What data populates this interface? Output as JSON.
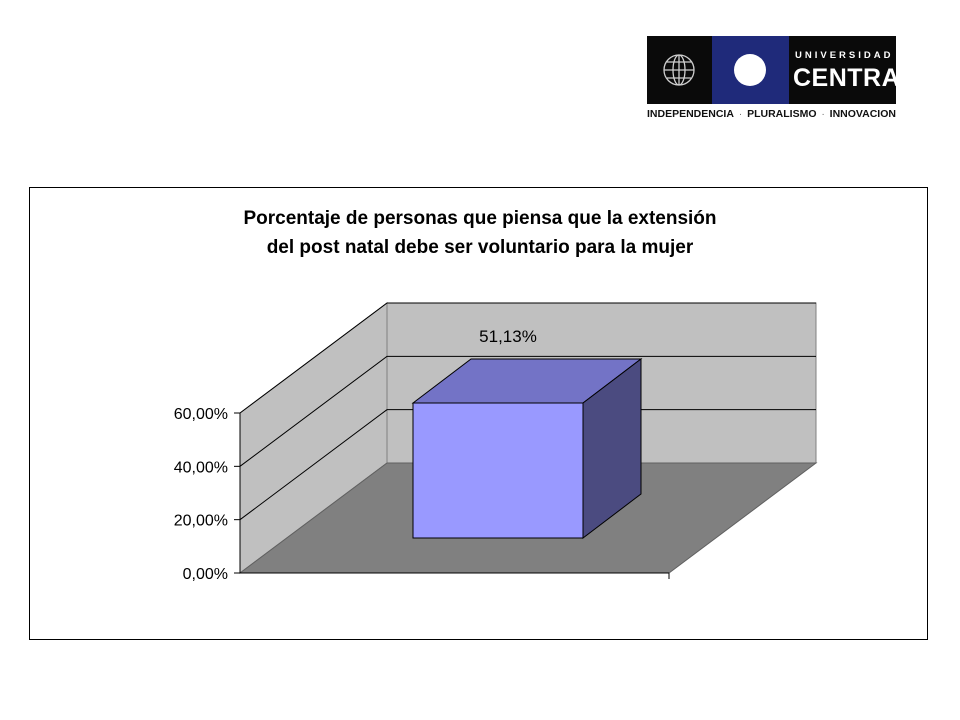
{
  "logo": {
    "top_text": "UNIVERSIDAD",
    "main_text": "CENTRAL",
    "tagline": [
      "INDEPENDENCIA",
      "PLURALISMO",
      "INNOVACION"
    ],
    "colors": {
      "dark": "#0a0a0a",
      "blue": "#1f2a7a",
      "white": "#ffffff"
    }
  },
  "chart_data": {
    "type": "bar",
    "title_lines": [
      "Porcentaje de personas que piensa que la extensión",
      "del post natal debe ser voluntario para la mujer"
    ],
    "categories": [
      ""
    ],
    "values": [
      51.13
    ],
    "data_labels": [
      "51,13%"
    ],
    "ylim": [
      0,
      60
    ],
    "yticks": [
      {
        "value": 0,
        "label": "0,00%"
      },
      {
        "value": 20,
        "label": "20,00%"
      },
      {
        "value": 40,
        "label": "40,00%"
      },
      {
        "value": 60,
        "label": "60,00%"
      }
    ],
    "grid": true,
    "three_d": true,
    "colors": {
      "bar_front": "#9999ff",
      "bar_top": "#7373c6",
      "bar_side": "#4b4b80",
      "walls": "#c0c0c0",
      "floor": "#808080"
    }
  }
}
